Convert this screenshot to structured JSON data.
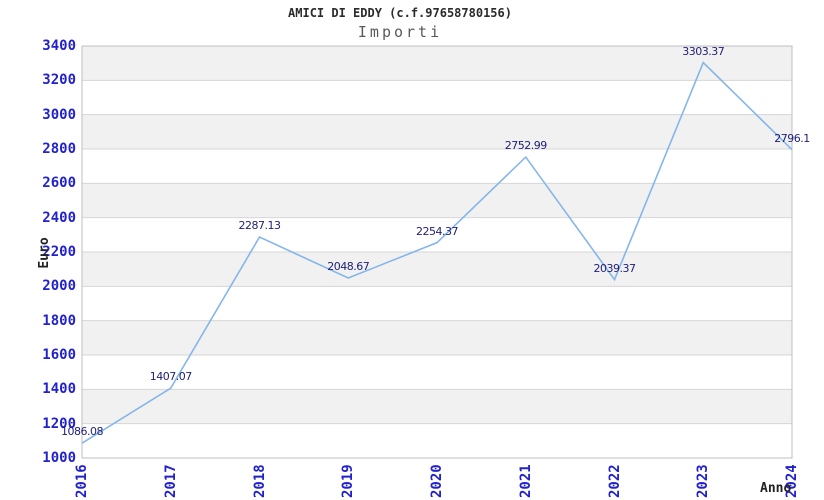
{
  "chart_data": {
    "type": "line",
    "title": "AMICI DI EDDY (c.f.97658780156)",
    "subtitle": "Importi",
    "xlabel": "Anno",
    "ylabel": "Euro",
    "categories": [
      "2016",
      "2017",
      "2018",
      "2019",
      "2020",
      "2021",
      "2022",
      "2023",
      "2024"
    ],
    "values": [
      1086.08,
      1407.07,
      2287.13,
      2048.67,
      2254.37,
      2752.99,
      2039.37,
      3303.37,
      2796.1
    ],
    "point_labels": [
      "1086.08",
      "1407.07",
      "2287.13",
      "2048.67",
      "2254.37",
      "2752.99",
      "2039.37",
      "3303.37",
      "2796.1"
    ],
    "ylim": [
      1000,
      3400
    ],
    "ytick_step": 200,
    "ytick_labels": [
      "1000",
      "1200",
      "1400",
      "1600",
      "1800",
      "2000",
      "2200",
      "2400",
      "2600",
      "2800",
      "3000",
      "3200",
      "3400"
    ],
    "grid": "horizontal-bands-alternating",
    "legend": "none",
    "colors": {
      "line": "#85b6ea",
      "tick_label": "#2222cc",
      "point_label": "#1e1e78",
      "band": "#f1f1f1",
      "gridline": "#d6d6d6",
      "plot_border": "#bfbfbf",
      "title": "#2b2b2b",
      "subtitle": "#5a5a5a",
      "axis_title": "#222222",
      "background": "#ffffff"
    }
  }
}
